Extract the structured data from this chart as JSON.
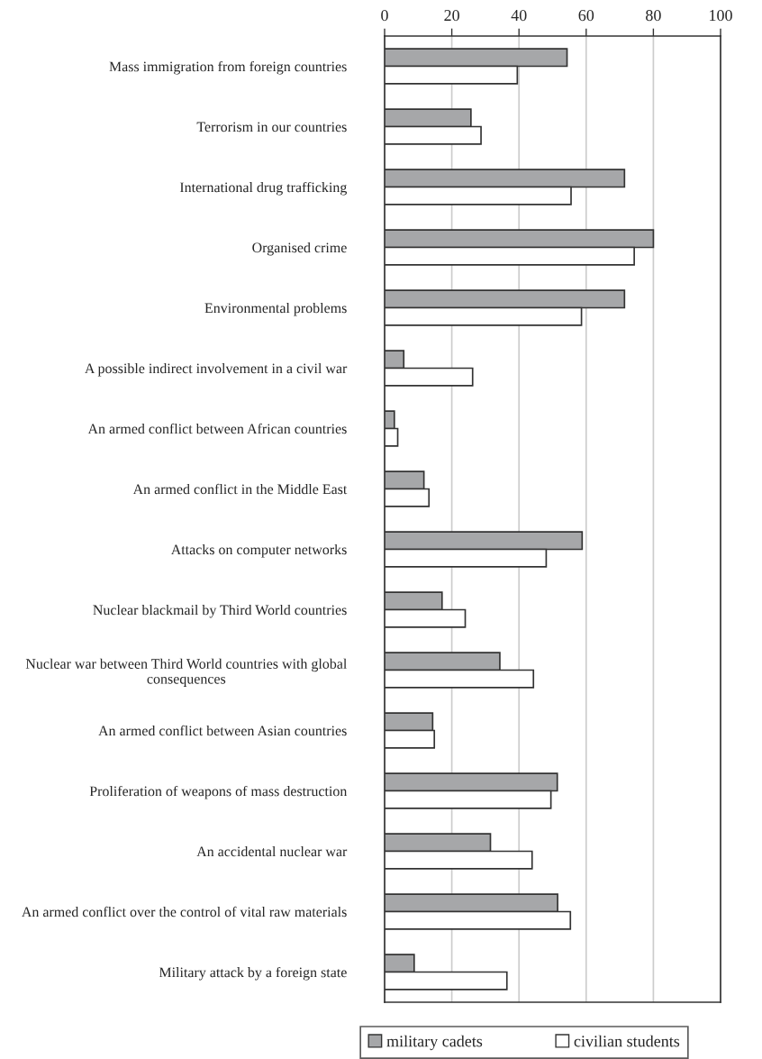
{
  "chart_data": {
    "type": "bar",
    "orientation": "horizontal",
    "categories": [
      "Mass immigration from foreign countries",
      "Terrorism in our countries",
      "International drug trafficking",
      "Organised crime",
      "Environmental problems",
      "A possible indirect involvement in a civil war",
      "An armed conflict between African countries",
      "An armed conflict in the Middle East",
      "Attacks on computer networks",
      "Nuclear blackmail by Third World countries",
      "Nuclear war between Third World countries with global consequences",
      "An armed conflict between Asian countries",
      "Proliferation of weapons of mass destruction",
      "An accidental nuclear war",
      "An armed conflict over the control of vital raw materials",
      "Military attack by a foreign state"
    ],
    "series": [
      {
        "name": "military cadets",
        "color": "#a6a7a9",
        "values": [
          54.3,
          25.7,
          71.4,
          80.0,
          71.4,
          5.7,
          2.9,
          11.7,
          58.8,
          17.1,
          34.3,
          14.3,
          51.4,
          31.5,
          51.5,
          8.8
        ]
      },
      {
        "name": "civilian students",
        "color": "#ffffff",
        "values": [
          39.5,
          28.7,
          55.5,
          74.3,
          58.6,
          26.2,
          3.9,
          13.2,
          48.1,
          24.0,
          44.3,
          14.8,
          49.5,
          43.9,
          55.3,
          36.4
        ]
      }
    ],
    "xlim": [
      0,
      100
    ],
    "xticks": [
      0,
      20,
      40,
      60,
      80,
      100
    ],
    "grid": "x",
    "legend": "bottom"
  }
}
